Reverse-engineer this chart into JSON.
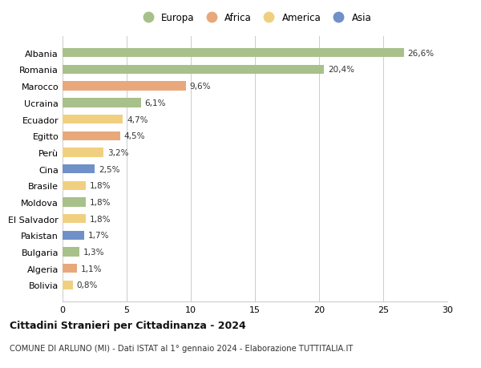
{
  "categories": [
    "Albania",
    "Romania",
    "Marocco",
    "Ucraina",
    "Ecuador",
    "Egitto",
    "Perù",
    "Cina",
    "Brasile",
    "Moldova",
    "El Salvador",
    "Pakistan",
    "Bulgaria",
    "Algeria",
    "Bolivia"
  ],
  "values": [
    26.6,
    20.4,
    9.6,
    6.1,
    4.7,
    4.5,
    3.2,
    2.5,
    1.8,
    1.8,
    1.8,
    1.7,
    1.3,
    1.1,
    0.8
  ],
  "labels": [
    "26,6%",
    "20,4%",
    "9,6%",
    "6,1%",
    "4,7%",
    "4,5%",
    "3,2%",
    "2,5%",
    "1,8%",
    "1,8%",
    "1,8%",
    "1,7%",
    "1,3%",
    "1,1%",
    "0,8%"
  ],
  "continents": [
    "Europa",
    "Europa",
    "Africa",
    "Europa",
    "America",
    "Africa",
    "America",
    "Asia",
    "America",
    "Europa",
    "America",
    "Asia",
    "Europa",
    "Africa",
    "America"
  ],
  "colors": {
    "Europa": "#a8c08a",
    "Africa": "#e8a87c",
    "America": "#f0d080",
    "Asia": "#7090c8"
  },
  "legend_order": [
    "Europa",
    "Africa",
    "America",
    "Asia"
  ],
  "xlim": [
    0,
    30
  ],
  "xticks": [
    0,
    5,
    10,
    15,
    20,
    25,
    30
  ],
  "title": "Cittadini Stranieri per Cittadinanza - 2024",
  "subtitle": "COMUNE DI ARLUNO (MI) - Dati ISTAT al 1° gennaio 2024 - Elaborazione TUTTITALIA.IT",
  "background_color": "#ffffff",
  "grid_color": "#cccccc",
  "bar_height": 0.55
}
